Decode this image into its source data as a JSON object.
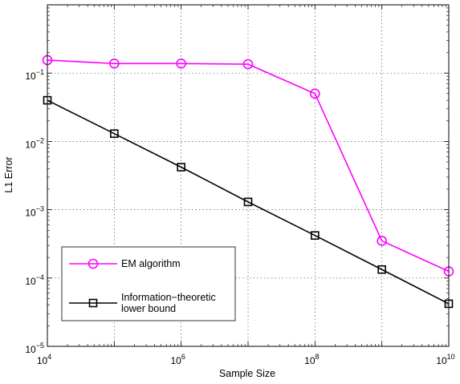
{
  "chart_data": {
    "type": "line",
    "xscale": "log",
    "yscale": "log",
    "xlabel": "Sample Size",
    "ylabel": "L1 Error",
    "xlim": [
      10000,
      10000000000
    ],
    "ylim": [
      1e-05,
      1
    ],
    "x_ticks": [
      {
        "base": "10",
        "exp": "4",
        "value": 10000
      },
      {
        "base": "10",
        "exp": "6",
        "value": 1000000
      },
      {
        "base": "10",
        "exp": "8",
        "value": 100000000
      },
      {
        "base": "10",
        "exp": "10",
        "value": 10000000000
      }
    ],
    "y_ticks": [
      {
        "base": "10",
        "exp": "−5",
        "value": 1e-05
      },
      {
        "base": "10",
        "exp": "−4",
        "value": 0.0001
      },
      {
        "base": "10",
        "exp": "−3",
        "value": 0.001
      },
      {
        "base": "10",
        "exp": "−2",
        "value": 0.01
      },
      {
        "base": "10",
        "exp": "−1",
        "value": 0.1
      }
    ],
    "grid": true,
    "legend_position": "bottom-left",
    "series": [
      {
        "name": "EM algorithm",
        "color": "#ff00ff",
        "marker": "circle",
        "x": [
          10000,
          100000,
          1000000,
          10000000,
          100000000,
          1000000000,
          10000000000
        ],
        "y": [
          0.155,
          0.138,
          0.138,
          0.135,
          0.05,
          0.00035,
          0.000125
        ]
      },
      {
        "name": "Information−theoretic lower bound",
        "legend_lines": [
          "Information−theoretic",
          "lower bound"
        ],
        "color": "#000000",
        "marker": "square",
        "x": [
          10000,
          100000,
          1000000,
          10000000,
          100000000,
          1000000000,
          10000000000
        ],
        "y": [
          0.04,
          0.013,
          0.0042,
          0.0013,
          0.00042,
          0.000133,
          4.2e-05
        ]
      }
    ]
  }
}
